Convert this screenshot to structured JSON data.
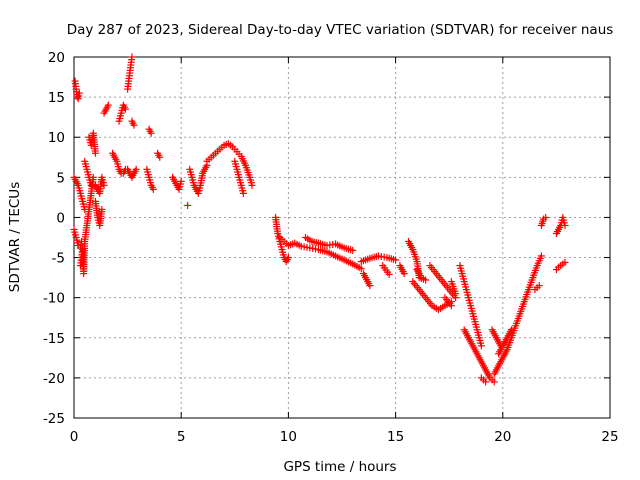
{
  "chart_data": {
    "type": "scatter",
    "title": "Day 287 of 2023, Sidereal Day-to-day VTEC variation (SDTVAR) for receiver naus",
    "xlabel": "GPS time / hours",
    "ylabel": "SDTVAR / TECUs",
    "xlim": [
      0,
      25
    ],
    "ylim": [
      -25,
      20
    ],
    "xticks": [
      0,
      5,
      10,
      15,
      20,
      25
    ],
    "yticks": [
      -25,
      -20,
      -15,
      -10,
      -5,
      0,
      5,
      10,
      15,
      20
    ],
    "xtick_labels": [
      "0",
      "5",
      "10",
      "15",
      "20",
      "25"
    ],
    "ytick_labels": [
      "-25",
      "-20",
      "-15",
      "-10",
      "-5",
      "0",
      "5",
      "10",
      "15",
      "20"
    ],
    "grid": true,
    "marker": "+",
    "color": "#ff0000",
    "series": [
      {
        "name": "SDTVAR",
        "segments": [
          [
            [
              0.0,
              -1.5
            ],
            [
              0.1,
              -2.5
            ],
            [
              0.2,
              -3.5
            ],
            [
              0.3,
              -3.8
            ],
            [
              0.35,
              -3.0
            ]
          ],
          [
            [
              0.05,
              17
            ],
            [
              0.1,
              16
            ],
            [
              0.15,
              15
            ],
            [
              0.2,
              14.8
            ],
            [
              0.25,
              15.5
            ]
          ],
          [
            [
              0.3,
              -6
            ],
            [
              0.35,
              -5
            ],
            [
              0.4,
              -4
            ],
            [
              0.45,
              -7
            ],
            [
              0.5,
              -3
            ],
            [
              0.6,
              -1
            ],
            [
              0.7,
              1
            ],
            [
              0.8,
              3
            ],
            [
              0.9,
              5
            ]
          ],
          [
            [
              0.0,
              5
            ],
            [
              0.1,
              4.5
            ],
            [
              0.2,
              4
            ],
            [
              0.3,
              3
            ],
            [
              0.4,
              2
            ],
            [
              0.5,
              1
            ]
          ],
          [
            [
              0.5,
              7
            ],
            [
              0.6,
              6
            ],
            [
              0.7,
              5
            ],
            [
              0.8,
              4
            ]
          ],
          [
            [
              0.7,
              10
            ],
            [
              0.8,
              9
            ],
            [
              0.9,
              10.5
            ],
            [
              1.0,
              8
            ]
          ],
          [
            [
              1.0,
              4
            ],
            [
              1.1,
              3.5
            ],
            [
              1.2,
              3
            ],
            [
              1.3,
              5
            ],
            [
              1.4,
              4
            ]
          ],
          [
            [
              1.0,
              2
            ],
            [
              1.1,
              0
            ],
            [
              1.2,
              -1
            ],
            [
              1.3,
              1
            ]
          ],
          [
            [
              1.4,
              13
            ],
            [
              1.5,
              13.5
            ],
            [
              1.6,
              14
            ]
          ],
          [
            [
              1.8,
              8
            ],
            [
              1.9,
              7.5
            ],
            [
              2.0,
              7
            ],
            [
              2.1,
              6
            ],
            [
              2.2,
              5.5
            ],
            [
              2.3,
              5.5
            ],
            [
              2.4,
              6
            ],
            [
              2.5,
              6
            ],
            [
              2.6,
              5.5
            ],
            [
              2.7,
              5
            ],
            [
              2.8,
              5.5
            ],
            [
              2.9,
              6
            ]
          ],
          [
            [
              2.1,
              12
            ],
            [
              2.2,
              13
            ],
            [
              2.3,
              14
            ],
            [
              2.4,
              13.5
            ]
          ],
          [
            [
              2.5,
              16
            ],
            [
              2.55,
              17
            ],
            [
              2.6,
              18
            ],
            [
              2.65,
              19
            ],
            [
              2.7,
              20
            ]
          ],
          [
            [
              2.7,
              12
            ],
            [
              2.8,
              11.5
            ]
          ],
          [
            [
              3.5,
              11
            ],
            [
              3.6,
              10.5
            ]
          ],
          [
            [
              3.4,
              6
            ],
            [
              3.5,
              5
            ],
            [
              3.6,
              4
            ],
            [
              3.7,
              3.5
            ]
          ],
          [
            [
              3.9,
              8
            ],
            [
              4.0,
              7.5
            ]
          ],
          [
            [
              4.6,
              5
            ],
            [
              4.7,
              4.5
            ],
            [
              4.8,
              4
            ],
            [
              4.9,
              3.5
            ],
            [
              5.0,
              4.5
            ]
          ],
          [
            [
              5.3,
              1.5
            ]
          ],
          [
            [
              5.4,
              6
            ],
            [
              5.5,
              5
            ],
            [
              5.6,
              4
            ],
            [
              5.7,
              3.5
            ],
            [
              5.8,
              3
            ],
            [
              5.9,
              4
            ],
            [
              6.0,
              5.5
            ],
            [
              6.1,
              6
            ],
            [
              6.2,
              6.5
            ]
          ],
          [
            [
              6.2,
              7
            ],
            [
              6.4,
              7.5
            ],
            [
              6.6,
              8
            ],
            [
              6.8,
              8.5
            ],
            [
              7.0,
              9
            ],
            [
              7.2,
              9.2
            ],
            [
              7.4,
              8.8
            ],
            [
              7.6,
              8.2
            ],
            [
              7.8,
              7.6
            ],
            [
              8.0,
              6.5
            ],
            [
              8.2,
              5
            ],
            [
              8.3,
              4
            ]
          ],
          [
            [
              7.5,
              7
            ],
            [
              7.6,
              6
            ],
            [
              7.7,
              5
            ],
            [
              7.8,
              4
            ],
            [
              7.9,
              3
            ]
          ],
          [
            [
              9.4,
              0
            ],
            [
              9.5,
              -2
            ],
            [
              9.6,
              -3
            ],
            [
              9.7,
              -4
            ],
            [
              9.8,
              -5
            ],
            [
              9.9,
              -5.5
            ],
            [
              10.0,
              -5
            ]
          ],
          [
            [
              9.6,
              -2.5
            ],
            [
              9.8,
              -3
            ],
            [
              10.0,
              -3.5
            ],
            [
              10.3,
              -3.2
            ],
            [
              10.6,
              -3.6
            ],
            [
              11.0,
              -3.8
            ],
            [
              11.4,
              -4.0
            ],
            [
              11.8,
              -4.3
            ],
            [
              12.2,
              -4.8
            ],
            [
              12.6,
              -5.3
            ],
            [
              13.0,
              -5.8
            ],
            [
              13.4,
              -6.4
            ]
          ],
          [
            [
              10.8,
              -2.5
            ],
            [
              11.1,
              -3
            ],
            [
              11.4,
              -3.2
            ],
            [
              11.8,
              -3.5
            ],
            [
              12.2,
              -3.3
            ],
            [
              12.6,
              -3.8
            ],
            [
              13.0,
              -4.1
            ]
          ],
          [
            [
              13.4,
              -5.5
            ],
            [
              13.8,
              -5.1
            ],
            [
              14.2,
              -4.8
            ],
            [
              14.6,
              -5.0
            ],
            [
              15.0,
              -5.3
            ]
          ],
          [
            [
              13.5,
              -7
            ],
            [
              13.8,
              -8.5
            ]
          ],
          [
            [
              14.4,
              -6
            ],
            [
              14.7,
              -7.1
            ]
          ],
          [
            [
              15.2,
              -6
            ],
            [
              15.4,
              -7
            ]
          ],
          [
            [
              15.6,
              -3
            ],
            [
              15.8,
              -4
            ],
            [
              16.0,
              -5.5
            ],
            [
              16.1,
              -7.5
            ],
            [
              16.4,
              -7.8
            ]
          ],
          [
            [
              16.0,
              -6.5
            ],
            [
              16.2,
              -7.5
            ]
          ],
          [
            [
              15.8,
              -8
            ],
            [
              16.1,
              -9
            ],
            [
              16.4,
              -10
            ],
            [
              16.7,
              -11
            ],
            [
              17.0,
              -11.5
            ],
            [
              17.3,
              -11
            ],
            [
              17.6,
              -10.5
            ]
          ],
          [
            [
              16.6,
              -6
            ],
            [
              16.9,
              -7
            ],
            [
              17.2,
              -8
            ],
            [
              17.5,
              -9
            ],
            [
              17.8,
              -10
            ]
          ],
          [
            [
              17.3,
              -10
            ],
            [
              17.6,
              -11
            ]
          ],
          [
            [
              17.6,
              -8
            ],
            [
              17.8,
              -9.5
            ]
          ],
          [
            [
              18.0,
              -6
            ],
            [
              18.1,
              -7
            ],
            [
              18.2,
              -8
            ],
            [
              18.3,
              -9
            ],
            [
              18.4,
              -10
            ],
            [
              18.5,
              -11
            ],
            [
              18.6,
              -12
            ],
            [
              18.7,
              -13
            ],
            [
              18.8,
              -14
            ],
            [
              18.9,
              -15
            ],
            [
              19.0,
              -16
            ]
          ],
          [
            [
              18.2,
              -14
            ],
            [
              18.4,
              -15
            ],
            [
              18.6,
              -16
            ],
            [
              18.8,
              -17
            ],
            [
              19.0,
              -18
            ],
            [
              19.2,
              -19
            ],
            [
              19.4,
              -20
            ],
            [
              19.6,
              -20.5
            ]
          ],
          [
            [
              19.0,
              -20
            ],
            [
              19.2,
              -20.5
            ]
          ],
          [
            [
              19.6,
              -19.5
            ],
            [
              19.8,
              -18.5
            ],
            [
              20.0,
              -17.5
            ],
            [
              20.2,
              -16.5
            ],
            [
              20.4,
              -15
            ],
            [
              20.6,
              -13.5
            ],
            [
              20.8,
              -12
            ],
            [
              21.0,
              -10.5
            ],
            [
              21.2,
              -9
            ],
            [
              21.4,
              -7.5
            ],
            [
              21.6,
              -6
            ],
            [
              21.8,
              -4.8
            ]
          ],
          [
            [
              19.8,
              -17
            ],
            [
              20.0,
              -16
            ],
            [
              20.2,
              -15
            ],
            [
              20.4,
              -14
            ]
          ],
          [
            [
              19.5,
              -14
            ],
            [
              19.7,
              -15
            ],
            [
              19.9,
              -16
            ]
          ],
          [
            [
              21.8,
              -1
            ],
            [
              21.9,
              -0.2
            ],
            [
              22.0,
              0
            ]
          ],
          [
            [
              22.5,
              -2
            ],
            [
              22.6,
              -1.5
            ],
            [
              22.7,
              -1
            ],
            [
              22.8,
              0
            ],
            [
              22.9,
              -1
            ]
          ],
          [
            [
              22.5,
              -6.5
            ],
            [
              22.6,
              -6.2
            ],
            [
              22.7,
              -6
            ],
            [
              22.8,
              -5.8
            ],
            [
              22.9,
              -5.6
            ]
          ],
          [
            [
              21.5,
              -9
            ],
            [
              21.7,
              -8.5
            ]
          ]
        ]
      }
    ]
  }
}
